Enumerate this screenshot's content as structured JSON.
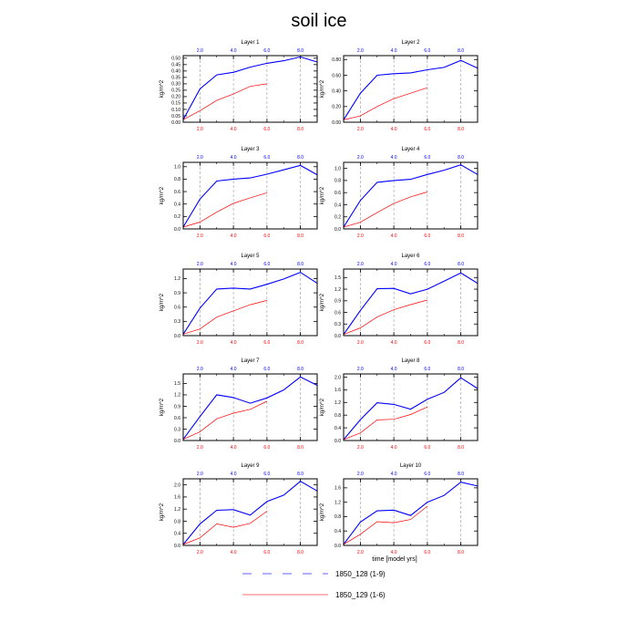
{
  "figure": {
    "title": "soil ice",
    "xlabel": "time [model yrs]",
    "ylabel": "kg/m^2",
    "legend": [
      {
        "label": "1850_128 (1-9)",
        "color": "#3030ff",
        "dash": "dashed"
      },
      {
        "label": "1850_129 (1-6)",
        "color": "#ff4040",
        "dash": "solid"
      }
    ],
    "colors": {
      "series1": "#0000ff",
      "series2": "#ff0000",
      "grid": "#999999"
    }
  },
  "chart_data": [
    {
      "type": "line",
      "title": "Layer 1",
      "xlim": [
        1,
        9
      ],
      "ylim": [
        0,
        0.52
      ],
      "yticks": [
        "0.00",
        "0.05",
        "0.10",
        "0.15",
        "0.20",
        "0.25",
        "0.30",
        "0.35",
        "0.40",
        "0.45",
        "0.50"
      ],
      "yticks_values": [
        0,
        0.05,
        0.1,
        0.15,
        0.2,
        0.25,
        0.3,
        0.35,
        0.4,
        0.45,
        0.5
      ],
      "xticks_top": [
        "2.0",
        "4.0",
        "6.0",
        "8.0"
      ],
      "xticks_bottom": [
        "2.0",
        "4.0",
        "6.0",
        "8.0"
      ],
      "xticks_values": [
        2,
        4,
        6,
        8
      ],
      "series": [
        {
          "x": [
            1,
            2,
            3,
            4,
            5,
            6,
            7,
            8,
            9
          ],
          "y": [
            0.02,
            0.26,
            0.37,
            0.39,
            0.43,
            0.46,
            0.48,
            0.51,
            0.47
          ]
        },
        {
          "x": [
            1,
            2,
            3,
            4,
            5,
            6
          ],
          "y": [
            0.02,
            0.09,
            0.17,
            0.22,
            0.28,
            0.3
          ]
        }
      ]
    },
    {
      "type": "line",
      "title": "Layer 2",
      "xlim": [
        1,
        9
      ],
      "ylim": [
        0,
        0.85
      ],
      "yticks": [
        "0.00",
        "0.20",
        "0.40",
        "0.60",
        "0.80"
      ],
      "yticks_values": [
        0,
        0.2,
        0.4,
        0.6,
        0.8
      ],
      "xticks_top": [
        "2.0",
        "4.0",
        "6.0",
        "8.0"
      ],
      "xticks_bottom": [
        "2.0",
        "4.0",
        "6.0",
        "8.0"
      ],
      "xticks_values": [
        2,
        4,
        6,
        8
      ],
      "series": [
        {
          "x": [
            1,
            2,
            3,
            4,
            5,
            6,
            7,
            8,
            9
          ],
          "y": [
            0.03,
            0.37,
            0.6,
            0.62,
            0.63,
            0.67,
            0.7,
            0.79,
            0.69
          ]
        },
        {
          "x": [
            1,
            2,
            3,
            4,
            5,
            6
          ],
          "y": [
            0.03,
            0.08,
            0.2,
            0.3,
            0.37,
            0.44
          ]
        }
      ]
    },
    {
      "type": "line",
      "title": "Layer 3",
      "xlim": [
        1,
        9
      ],
      "ylim": [
        0,
        1.07
      ],
      "yticks": [
        "0.0",
        "0.2",
        "0.4",
        "0.6",
        "0.8",
        "1.0"
      ],
      "yticks_values": [
        0,
        0.2,
        0.4,
        0.6,
        0.8,
        1.0
      ],
      "xticks_top": [
        "2.0",
        "4.0",
        "6.0",
        "8.0"
      ],
      "xticks_bottom": [
        "2.0",
        "4.0",
        "6.0",
        "8.0"
      ],
      "xticks_values": [
        2,
        4,
        6,
        8
      ],
      "series": [
        {
          "x": [
            1,
            2,
            3,
            4,
            5,
            6,
            7,
            8,
            9
          ],
          "y": [
            0.03,
            0.48,
            0.77,
            0.8,
            0.82,
            0.88,
            0.95,
            1.02,
            0.87
          ]
        },
        {
          "x": [
            1,
            2,
            3,
            4,
            5,
            6
          ],
          "y": [
            0.03,
            0.11,
            0.27,
            0.41,
            0.5,
            0.58
          ]
        }
      ]
    },
    {
      "type": "line",
      "title": "Layer 4",
      "xlim": [
        1,
        9
      ],
      "ylim": [
        0,
        1.1
      ],
      "yticks": [
        "0.0",
        "0.2",
        "0.4",
        "0.6",
        "0.8",
        "1.0"
      ],
      "yticks_values": [
        0,
        0.2,
        0.4,
        0.6,
        0.8,
        1.0
      ],
      "xticks_top": [
        "2.0",
        "4.0",
        "6.0",
        "8.0"
      ],
      "xticks_bottom": [
        "2.0",
        "4.0",
        "6.0",
        "8.0"
      ],
      "xticks_values": [
        2,
        4,
        6,
        8
      ],
      "series": [
        {
          "x": [
            1,
            2,
            3,
            4,
            5,
            6,
            7,
            8,
            9
          ],
          "y": [
            0.03,
            0.47,
            0.77,
            0.8,
            0.82,
            0.9,
            0.97,
            1.06,
            0.9
          ]
        },
        {
          "x": [
            1,
            2,
            3,
            4,
            5,
            6
          ],
          "y": [
            0.03,
            0.11,
            0.27,
            0.42,
            0.53,
            0.61
          ]
        }
      ]
    },
    {
      "type": "line",
      "title": "Layer 5",
      "xlim": [
        1,
        9
      ],
      "ylim": [
        0,
        1.4
      ],
      "yticks": [
        "0.0",
        "0.3",
        "0.6",
        "0.9",
        "1.2"
      ],
      "yticks_values": [
        0,
        0.3,
        0.6,
        0.9,
        1.2
      ],
      "xticks_top": [
        "2.0",
        "4.0",
        "6.0",
        "8.0"
      ],
      "xticks_bottom": [
        "2.0",
        "4.0",
        "6.0",
        "8.0"
      ],
      "xticks_values": [
        2,
        4,
        6,
        8
      ],
      "series": [
        {
          "x": [
            1,
            2,
            3,
            4,
            5,
            6,
            7,
            8,
            9
          ],
          "y": [
            0.03,
            0.58,
            0.98,
            1.0,
            0.98,
            1.08,
            1.19,
            1.33,
            1.1
          ]
        },
        {
          "x": [
            1,
            2,
            3,
            4,
            5,
            6
          ],
          "y": [
            0.03,
            0.14,
            0.39,
            0.52,
            0.65,
            0.74
          ]
        }
      ]
    },
    {
      "type": "line",
      "title": "Layer 6",
      "xlim": [
        1,
        9
      ],
      "ylim": [
        0,
        1.72
      ],
      "yticks": [
        "0.0",
        "0.3",
        "0.6",
        "0.9",
        "1.2",
        "1.5"
      ],
      "yticks_values": [
        0,
        0.3,
        0.6,
        0.9,
        1.2,
        1.5
      ],
      "xticks_top": [
        "2.0",
        "4.0",
        "6.0",
        "8.0"
      ],
      "xticks_bottom": [
        "2.0",
        "4.0",
        "6.0",
        "8.0"
      ],
      "xticks_values": [
        2,
        4,
        6,
        8
      ],
      "series": [
        {
          "x": [
            1,
            2,
            3,
            4,
            5,
            6,
            7,
            8,
            9
          ],
          "y": [
            0.03,
            0.65,
            1.21,
            1.22,
            1.08,
            1.2,
            1.41,
            1.62,
            1.35
          ]
        },
        {
          "x": [
            1,
            2,
            3,
            4,
            5,
            6
          ],
          "y": [
            0.03,
            0.2,
            0.48,
            0.67,
            0.8,
            0.92
          ]
        }
      ]
    },
    {
      "type": "line",
      "title": "Layer 7",
      "xlim": [
        1,
        9
      ],
      "ylim": [
        0,
        1.75
      ],
      "yticks": [
        "0.0",
        "0.3",
        "0.6",
        "0.9",
        "1.2",
        "1.5"
      ],
      "yticks_values": [
        0,
        0.3,
        0.6,
        0.9,
        1.2,
        1.5
      ],
      "xticks_top": [
        "2.0",
        "4.0",
        "6.0",
        "8.0"
      ],
      "xticks_bottom": [
        "2.0",
        "4.0",
        "6.0",
        "8.0"
      ],
      "xticks_values": [
        2,
        4,
        6,
        8
      ],
      "series": [
        {
          "x": [
            1,
            2,
            3,
            4,
            5,
            6,
            7,
            8,
            9
          ],
          "y": [
            0.03,
            0.63,
            1.2,
            1.13,
            0.98,
            1.12,
            1.33,
            1.67,
            1.45
          ]
        },
        {
          "x": [
            1,
            2,
            3,
            4,
            5,
            6
          ],
          "y": [
            0.03,
            0.23,
            0.57,
            0.72,
            0.82,
            1.03
          ]
        }
      ]
    },
    {
      "type": "line",
      "title": "Layer 8",
      "xlim": [
        1,
        9
      ],
      "ylim": [
        0,
        2.1
      ],
      "yticks": [
        "0.0",
        "0.4",
        "0.8",
        "1.2",
        "1.6",
        "2.0"
      ],
      "yticks_values": [
        0,
        0.4,
        0.8,
        1.2,
        1.6,
        2.0
      ],
      "xticks_top": [
        "2.0",
        "4.0",
        "6.0",
        "8.0"
      ],
      "xticks_bottom": [
        "2.0",
        "4.0",
        "6.0",
        "8.0"
      ],
      "xticks_values": [
        2,
        4,
        6,
        8
      ],
      "series": [
        {
          "x": [
            1,
            2,
            3,
            4,
            5,
            6,
            7,
            8,
            9
          ],
          "y": [
            0.03,
            0.66,
            1.19,
            1.14,
            0.99,
            1.3,
            1.52,
            1.98,
            1.64
          ]
        },
        {
          "x": [
            1,
            2,
            3,
            4,
            5,
            6
          ],
          "y": [
            0.03,
            0.24,
            0.65,
            0.67,
            0.82,
            1.06
          ]
        }
      ]
    },
    {
      "type": "line",
      "title": "Layer 9",
      "xlim": [
        1,
        9
      ],
      "ylim": [
        0,
        2.2
      ],
      "yticks": [
        "0.0",
        "0.4",
        "0.8",
        "1.2",
        "1.6",
        "2.0"
      ],
      "yticks_values": [
        0,
        0.4,
        0.8,
        1.2,
        1.6,
        2.0
      ],
      "xticks_top": [
        "2.0",
        "4.0",
        "6.0",
        "8.0"
      ],
      "xticks_bottom": [
        "2.0",
        "4.0",
        "6.0",
        "8.0"
      ],
      "xticks_values": [
        2,
        4,
        6,
        8
      ],
      "series": [
        {
          "x": [
            1,
            2,
            3,
            4,
            5,
            6,
            7,
            8,
            9
          ],
          "y": [
            0.03,
            0.71,
            1.16,
            1.18,
            1.0,
            1.45,
            1.66,
            2.12,
            1.8
          ]
        },
        {
          "x": [
            1,
            2,
            3,
            4,
            5,
            6
          ],
          "y": [
            0.03,
            0.25,
            0.71,
            0.6,
            0.73,
            1.13
          ]
        }
      ]
    },
    {
      "type": "line",
      "title": "Layer 10",
      "xlim": [
        1,
        9
      ],
      "ylim": [
        0,
        1.85
      ],
      "yticks": [
        "0.0",
        "0.4",
        "0.8",
        "1.2",
        "1.6"
      ],
      "yticks_values": [
        0,
        0.4,
        0.8,
        1.2,
        1.6
      ],
      "xticks_top": [
        "2.0",
        "4.0",
        "6.0",
        "8.0"
      ],
      "xticks_bottom": [
        "2.0",
        "4.0",
        "6.0",
        "8.0"
      ],
      "xticks_values": [
        2,
        4,
        6,
        8
      ],
      "series": [
        {
          "x": [
            1,
            2,
            3,
            4,
            5,
            6,
            7,
            8,
            9
          ],
          "y": [
            0.03,
            0.65,
            0.96,
            0.98,
            0.83,
            1.2,
            1.39,
            1.76,
            1.65
          ]
        },
        {
          "x": [
            1,
            2,
            3,
            4,
            5,
            6
          ],
          "y": [
            0.03,
            0.31,
            0.66,
            0.63,
            0.72,
            1.09
          ]
        }
      ]
    }
  ]
}
